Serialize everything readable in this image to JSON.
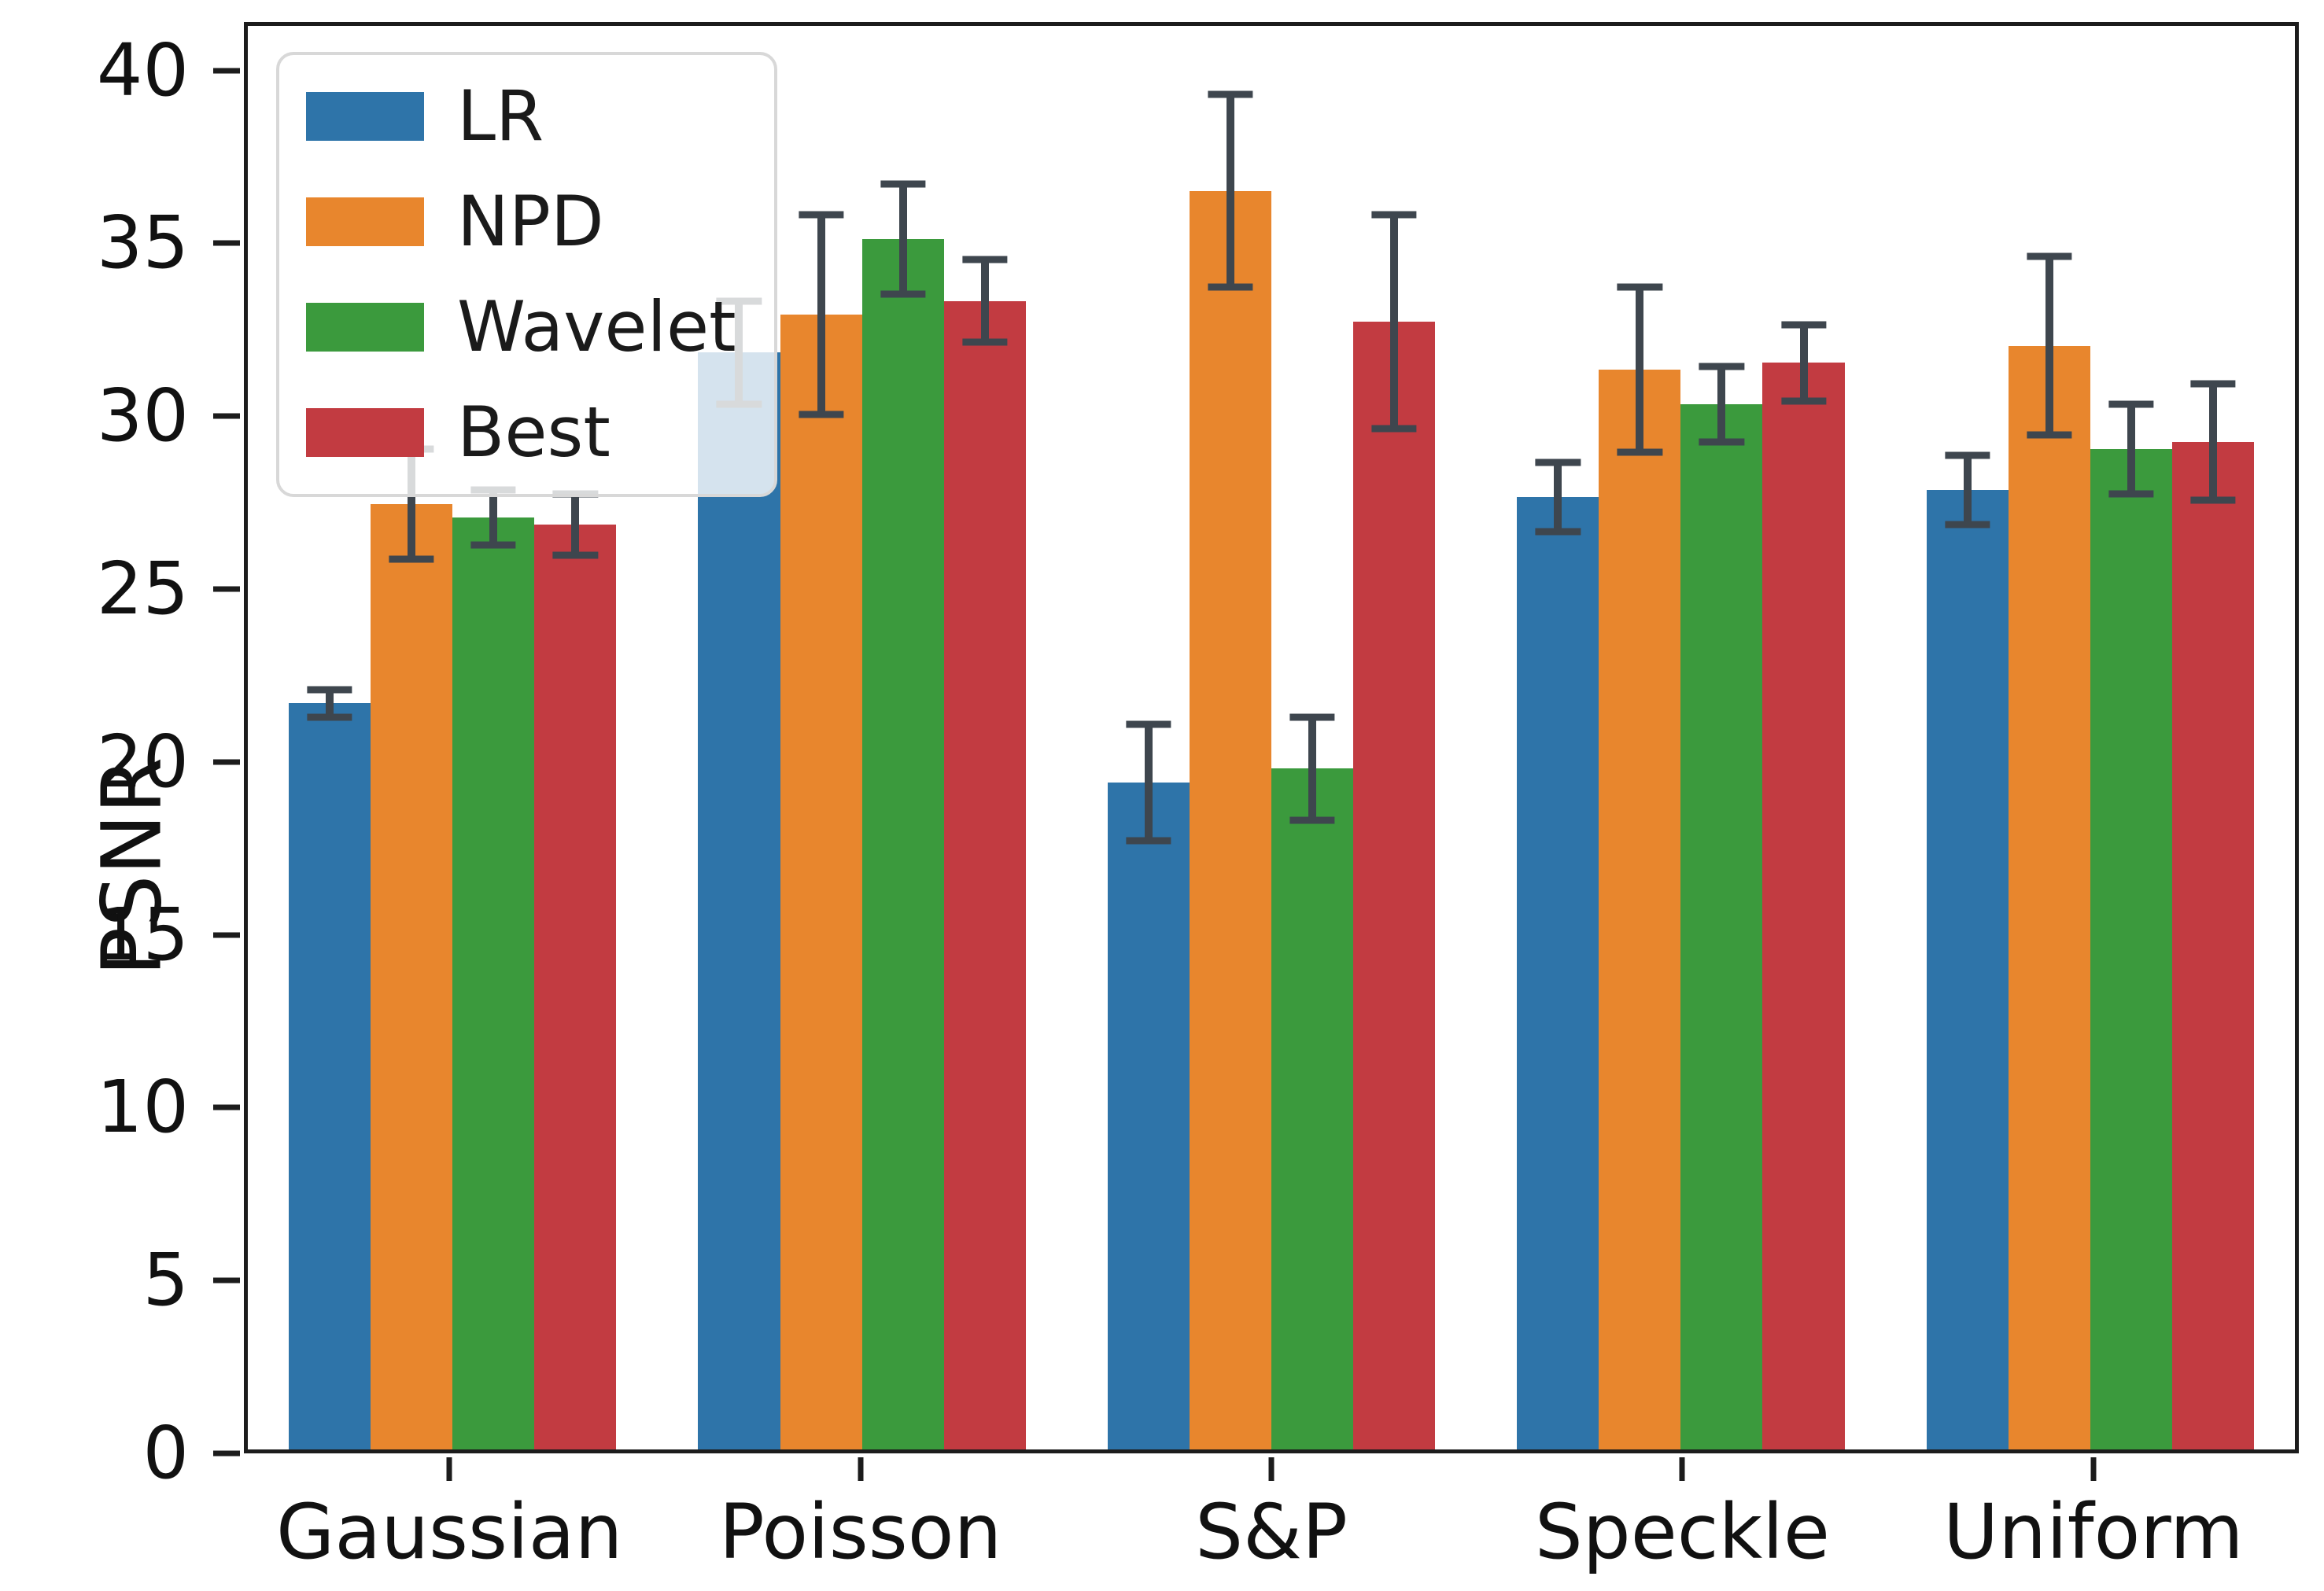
{
  "figure_title": "",
  "chart_data": {
    "type": "bar",
    "title": "",
    "xlabel": "",
    "ylabel": "PSNR",
    "categories": [
      "Gaussian",
      "Poisson",
      "S&P",
      "Speckle",
      "Uniform"
    ],
    "series": [
      {
        "name": "LR",
        "color": "#2e74a9",
        "values": [
          21.7,
          31.9,
          19.4,
          27.7,
          27.9
        ],
        "errors": [
          0.4,
          1.5,
          1.7,
          1.0,
          1.0
        ]
      },
      {
        "name": "NPD",
        "color": "#e8862d",
        "values": [
          27.5,
          33.0,
          36.6,
          31.4,
          32.1
        ],
        "errors": [
          1.6,
          2.9,
          2.8,
          2.4,
          2.6
        ]
      },
      {
        "name": "Wavelet",
        "color": "#3b9a3d",
        "values": [
          27.1,
          35.2,
          19.8,
          30.4,
          29.1
        ],
        "errors": [
          0.8,
          1.6,
          1.5,
          1.1,
          1.3
        ]
      },
      {
        "name": "Best",
        "color": "#c23b41",
        "values": [
          26.9,
          33.4,
          32.8,
          31.6,
          29.3
        ],
        "errors": [
          0.9,
          1.2,
          3.1,
          1.1,
          1.7
        ]
      }
    ],
    "y_ticks": [
      0,
      5,
      10,
      15,
      20,
      25,
      30,
      35,
      40
    ],
    "ylim": [
      0,
      41.4
    ],
    "grid": false,
    "legend_position": "upper-left",
    "error_bar_color": "#3e464e",
    "group_width_fraction": 0.8
  }
}
